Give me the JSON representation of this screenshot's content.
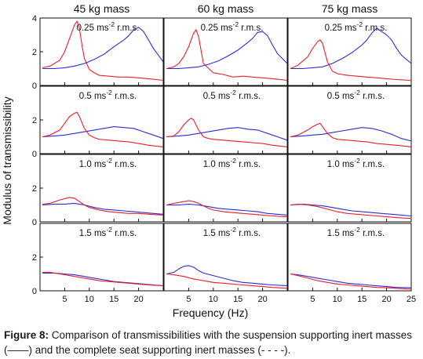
{
  "figure": {
    "caption_label": "Figure 8:",
    "caption_text": "Comparison of transmissibilities with the suspension supporting inert masses (——) and the complete seat supporting inert masses (- - - -)."
  },
  "chart_data": {
    "type": "line",
    "xlabel": "Frequency (Hz)",
    "ylabel": "Modulus of transmissibility",
    "xlim": [
      0,
      25
    ],
    "ylim": [
      0,
      4
    ],
    "column_labels": [
      "45 kg mass",
      "60 kg mass",
      "75 kg mass"
    ],
    "row_labels": [
      "0.25 ms",
      "0.5 ms",
      "1.0 ms",
      "1.5 ms"
    ],
    "row_label_superscript": "-2",
    "row_label_suffix": " r.m.s.",
    "y_ticks": [
      "0",
      "2",
      "4"
    ],
    "x_ticks_cols_1_2": [
      "5",
      "10",
      "15",
      "20"
    ],
    "x_ticks_col_3": [
      "5",
      "10",
      "15",
      "20",
      "25"
    ],
    "series_colors": {
      "suspension": "#e8202a",
      "complete_seat": "#2b2bd9"
    },
    "panels": [
      {
        "row": 0,
        "col": 0,
        "suspension": {
          "x": [
            0.5,
            2,
            4,
            5,
            6,
            7,
            7.5,
            8,
            8.5,
            9,
            10,
            11,
            12,
            14,
            16,
            18,
            20,
            22,
            25
          ],
          "y": [
            1.05,
            1.15,
            1.5,
            2.0,
            2.8,
            3.6,
            3.8,
            3.4,
            2.4,
            1.6,
            0.95,
            0.75,
            0.6,
            0.55,
            0.5,
            0.5,
            0.45,
            0.4,
            0.3
          ]
        },
        "complete_seat": {
          "x": [
            0.5,
            3,
            5,
            7,
            9,
            11,
            13,
            15,
            17,
            18,
            19,
            20,
            21,
            22,
            23,
            24,
            25
          ],
          "y": [
            1.0,
            1.0,
            1.05,
            1.15,
            1.3,
            1.55,
            1.85,
            2.3,
            2.7,
            2.95,
            3.3,
            3.45,
            3.2,
            2.7,
            2.2,
            1.8,
            1.4
          ]
        }
      },
      {
        "row": 0,
        "col": 1,
        "suspension": {
          "x": [
            0.5,
            2,
            3,
            4,
            5,
            5.5,
            6,
            6.5,
            7,
            8,
            10,
            12,
            14,
            16,
            18,
            20,
            22,
            25
          ],
          "y": [
            1.0,
            1.1,
            1.3,
            1.7,
            2.3,
            2.7,
            3.1,
            3.3,
            2.9,
            1.3,
            0.75,
            0.65,
            0.5,
            0.55,
            0.5,
            0.45,
            0.4,
            0.3
          ]
        },
        "complete_seat": {
          "x": [
            0.5,
            3,
            5,
            7,
            9,
            11,
            13,
            15,
            17,
            18,
            19,
            20,
            21,
            22,
            23,
            25
          ],
          "y": [
            1.0,
            1.0,
            1.05,
            1.1,
            1.25,
            1.45,
            1.75,
            2.1,
            2.55,
            2.8,
            3.15,
            3.2,
            2.95,
            2.4,
            1.9,
            1.3
          ]
        }
      },
      {
        "row": 0,
        "col": 2,
        "suspension": {
          "x": [
            0.5,
            2,
            4,
            5,
            6,
            6.5,
            7,
            8,
            9,
            10,
            12,
            14,
            16,
            18,
            20,
            22,
            25
          ],
          "y": [
            1.0,
            1.2,
            1.7,
            2.2,
            2.6,
            2.7,
            2.5,
            1.4,
            0.85,
            0.7,
            0.6,
            0.55,
            0.5,
            0.45,
            0.4,
            0.35,
            0.3
          ]
        },
        "complete_seat": {
          "x": [
            0.5,
            3,
            5,
            7,
            9,
            11,
            13,
            15,
            16,
            17,
            18,
            19,
            20,
            21,
            22,
            23,
            25
          ],
          "y": [
            1.0,
            1.0,
            1.05,
            1.1,
            1.3,
            1.6,
            1.95,
            2.4,
            2.7,
            3.1,
            3.4,
            3.2,
            3.0,
            2.7,
            2.2,
            1.8,
            1.3
          ]
        }
      },
      {
        "row": 1,
        "col": 0,
        "suspension": {
          "x": [
            0.5,
            2,
            4,
            5,
            6,
            7,
            7.5,
            8,
            9,
            10,
            11,
            12,
            14,
            16,
            18,
            20,
            22,
            25
          ],
          "y": [
            1.0,
            1.1,
            1.4,
            1.8,
            2.2,
            2.4,
            2.45,
            2.2,
            1.5,
            1.1,
            0.95,
            0.85,
            0.8,
            0.75,
            0.7,
            0.6,
            0.5,
            0.4
          ]
        },
        "complete_seat": {
          "x": [
            0.5,
            3,
            5,
            7,
            9,
            11,
            13,
            15,
            17,
            19,
            21,
            23,
            25
          ],
          "y": [
            1.0,
            1.05,
            1.1,
            1.2,
            1.3,
            1.4,
            1.5,
            1.6,
            1.55,
            1.5,
            1.3,
            1.1,
            0.9
          ]
        }
      },
      {
        "row": 1,
        "col": 1,
        "suspension": {
          "x": [
            0.5,
            2,
            3,
            4,
            5,
            5.5,
            6,
            7,
            8,
            9,
            10,
            12,
            14,
            16,
            18,
            20,
            22,
            25
          ],
          "y": [
            1.0,
            1.05,
            1.3,
            1.7,
            2.0,
            2.1,
            2.0,
            1.4,
            1.0,
            0.9,
            0.85,
            0.8,
            0.75,
            0.7,
            0.65,
            0.6,
            0.5,
            0.4
          ]
        },
        "complete_seat": {
          "x": [
            0.5,
            3,
            5,
            7,
            9,
            11,
            13,
            15,
            17,
            19,
            21,
            23,
            25
          ],
          "y": [
            1.0,
            1.05,
            1.1,
            1.2,
            1.3,
            1.4,
            1.5,
            1.55,
            1.45,
            1.4,
            1.2,
            1.0,
            0.8
          ]
        }
      },
      {
        "row": 1,
        "col": 2,
        "suspension": {
          "x": [
            0.5,
            2,
            4,
            5,
            6,
            6.5,
            7,
            8,
            9,
            10,
            12,
            14,
            16,
            18,
            20,
            22,
            25
          ],
          "y": [
            1.0,
            1.1,
            1.4,
            1.6,
            1.75,
            1.8,
            1.6,
            1.2,
            0.95,
            0.85,
            0.8,
            0.75,
            0.7,
            0.6,
            0.55,
            0.5,
            0.4
          ]
        },
        "complete_seat": {
          "x": [
            0.5,
            3,
            5,
            7,
            9,
            11,
            13,
            15,
            17,
            19,
            21,
            23,
            25
          ],
          "y": [
            1.0,
            1.05,
            1.1,
            1.15,
            1.25,
            1.35,
            1.45,
            1.55,
            1.5,
            1.35,
            1.15,
            0.9,
            0.75
          ]
        }
      },
      {
        "row": 2,
        "col": 0,
        "suspension": {
          "x": [
            0.5,
            2,
            4,
            6,
            7,
            8,
            9,
            10,
            12,
            14,
            16,
            18,
            20,
            22,
            25
          ],
          "y": [
            1.05,
            1.1,
            1.3,
            1.45,
            1.4,
            1.2,
            1.0,
            0.85,
            0.7,
            0.6,
            0.55,
            0.5,
            0.5,
            0.45,
            0.4
          ]
        },
        "complete_seat": {
          "x": [
            0.5,
            3,
            5,
            7,
            9,
            11,
            13,
            15,
            17,
            19,
            21,
            23,
            25
          ],
          "y": [
            1.0,
            1.05,
            1.05,
            1.1,
            1.0,
            0.85,
            0.75,
            0.7,
            0.65,
            0.6,
            0.55,
            0.5,
            0.45
          ]
        }
      },
      {
        "row": 2,
        "col": 1,
        "suspension": {
          "x": [
            0.5,
            2,
            4,
            5,
            6,
            7,
            8,
            9,
            10,
            12,
            14,
            16,
            18,
            20,
            22,
            25
          ],
          "y": [
            1.0,
            1.1,
            1.2,
            1.25,
            1.2,
            1.1,
            0.95,
            0.8,
            0.7,
            0.6,
            0.55,
            0.5,
            0.45,
            0.4,
            0.35,
            0.3
          ]
        },
        "complete_seat": {
          "x": [
            0.5,
            3,
            5,
            7,
            9,
            11,
            13,
            15,
            17,
            19,
            21,
            23,
            25
          ],
          "y": [
            1.0,
            1.0,
            1.05,
            1.0,
            0.9,
            0.8,
            0.75,
            0.7,
            0.65,
            0.6,
            0.5,
            0.45,
            0.4
          ]
        }
      },
      {
        "row": 2,
        "col": 2,
        "suspension": {
          "x": [
            0.5,
            2,
            4,
            6,
            8,
            10,
            12,
            14,
            16,
            18,
            20,
            22,
            25
          ],
          "y": [
            1.0,
            1.05,
            1.0,
            0.9,
            0.75,
            0.6,
            0.5,
            0.45,
            0.4,
            0.35,
            0.3,
            0.25,
            0.2
          ]
        },
        "complete_seat": {
          "x": [
            0.5,
            3,
            5,
            7,
            9,
            11,
            13,
            15,
            17,
            19,
            21,
            23,
            25
          ],
          "y": [
            1.0,
            1.05,
            1.0,
            0.95,
            0.85,
            0.75,
            0.65,
            0.6,
            0.55,
            0.5,
            0.45,
            0.4,
            0.35
          ]
        }
      },
      {
        "row": 3,
        "col": 0,
        "suspension": {
          "x": [
            0.5,
            2,
            4,
            6,
            8,
            10,
            12,
            14,
            16,
            18,
            20,
            22,
            25
          ],
          "y": [
            1.1,
            1.1,
            1.0,
            0.9,
            0.8,
            0.7,
            0.6,
            0.55,
            0.5,
            0.45,
            0.4,
            0.35,
            0.3
          ]
        },
        "complete_seat": {
          "x": [
            0.5,
            3,
            5,
            7,
            9,
            11,
            13,
            15,
            17,
            19,
            21,
            23,
            25
          ],
          "y": [
            1.05,
            1.05,
            1.0,
            0.95,
            0.85,
            0.75,
            0.65,
            0.55,
            0.5,
            0.45,
            0.4,
            0.35,
            0.3
          ]
        }
      },
      {
        "row": 3,
        "col": 1,
        "suspension": {
          "x": [
            0.5,
            2,
            4,
            6,
            8,
            10,
            12,
            14,
            16,
            18,
            20,
            22,
            25
          ],
          "y": [
            1.0,
            0.95,
            0.85,
            0.7,
            0.6,
            0.5,
            0.45,
            0.4,
            0.35,
            0.3,
            0.25,
            0.2,
            0.15
          ]
        },
        "complete_seat": {
          "x": [
            0.5,
            2,
            3,
            4,
            5,
            6,
            7,
            8,
            10,
            12,
            14,
            16,
            18,
            20,
            22,
            25
          ],
          "y": [
            1.0,
            1.1,
            1.3,
            1.45,
            1.5,
            1.4,
            1.2,
            1.05,
            0.9,
            0.75,
            0.6,
            0.5,
            0.45,
            0.4,
            0.35,
            0.3
          ]
        }
      },
      {
        "row": 3,
        "col": 2,
        "suspension": {
          "x": [
            0.5,
            2,
            4,
            6,
            8,
            10,
            12,
            14,
            16,
            18,
            20,
            22,
            25
          ],
          "y": [
            1.0,
            0.9,
            0.75,
            0.6,
            0.5,
            0.4,
            0.35,
            0.3,
            0.25,
            0.2,
            0.18,
            0.15,
            0.1
          ]
        },
        "complete_seat": {
          "x": [
            0.5,
            2,
            4,
            6,
            8,
            10,
            12,
            14,
            16,
            18,
            20,
            22,
            25
          ],
          "y": [
            1.0,
            0.95,
            0.85,
            0.75,
            0.65,
            0.55,
            0.45,
            0.4,
            0.35,
            0.3,
            0.25,
            0.2,
            0.18
          ]
        }
      }
    ]
  }
}
